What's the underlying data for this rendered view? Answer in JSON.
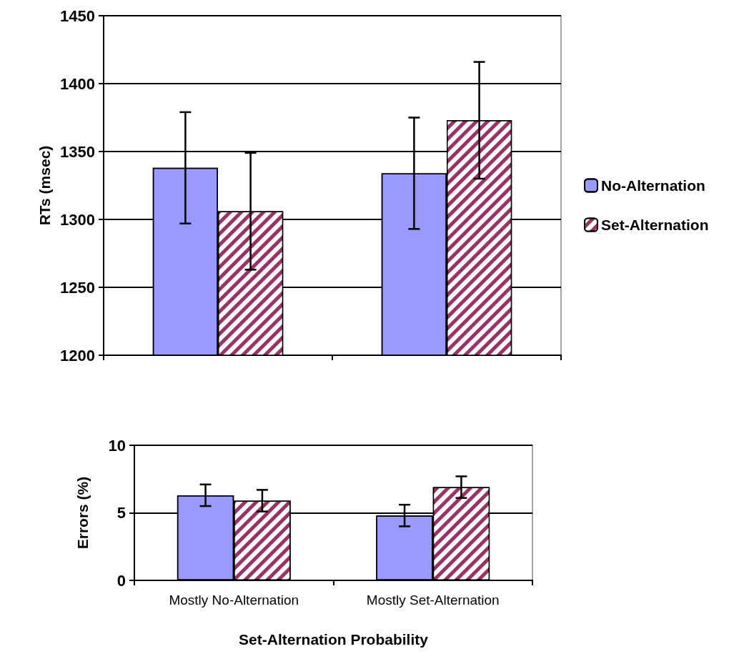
{
  "chart_data": [
    {
      "type": "bar",
      "ylabel": "RTs (msec)",
      "categories": [
        null,
        null
      ],
      "ylim": [
        1200,
        1450
      ],
      "yticks": [
        1200,
        1250,
        1300,
        1350,
        1400,
        1450
      ],
      "grid": "y",
      "legend": "right",
      "tick_labels": "y",
      "series": [
        {
          "name": "No-Alternation",
          "color": "#9999ff",
          "values": [
            1338,
            1334
          ],
          "errors": [
            41,
            41
          ]
        },
        {
          "name": "Set-Alternation",
          "color": "#993366",
          "values": [
            1306,
            1373
          ],
          "errors": [
            43,
            43
          ]
        }
      ]
    },
    {
      "type": "bar",
      "ylabel": "Errors (%)",
      "xlabel": "Set-Alternation Probability",
      "categories": [
        "Mostly No-Alternation",
        "Mostly Set-Alternation"
      ],
      "ylim": [
        0,
        10
      ],
      "yticks": [
        0,
        5,
        10
      ],
      "grid": "y",
      "series": [
        {
          "color": "#9999ff",
          "values": [
            6.3,
            4.8
          ],
          "errors": [
            0.8,
            0.8
          ]
        },
        {
          "color": "#993366",
          "values": [
            5.9,
            6.9
          ],
          "errors": [
            0.8,
            0.8
          ]
        }
      ]
    }
  ]
}
